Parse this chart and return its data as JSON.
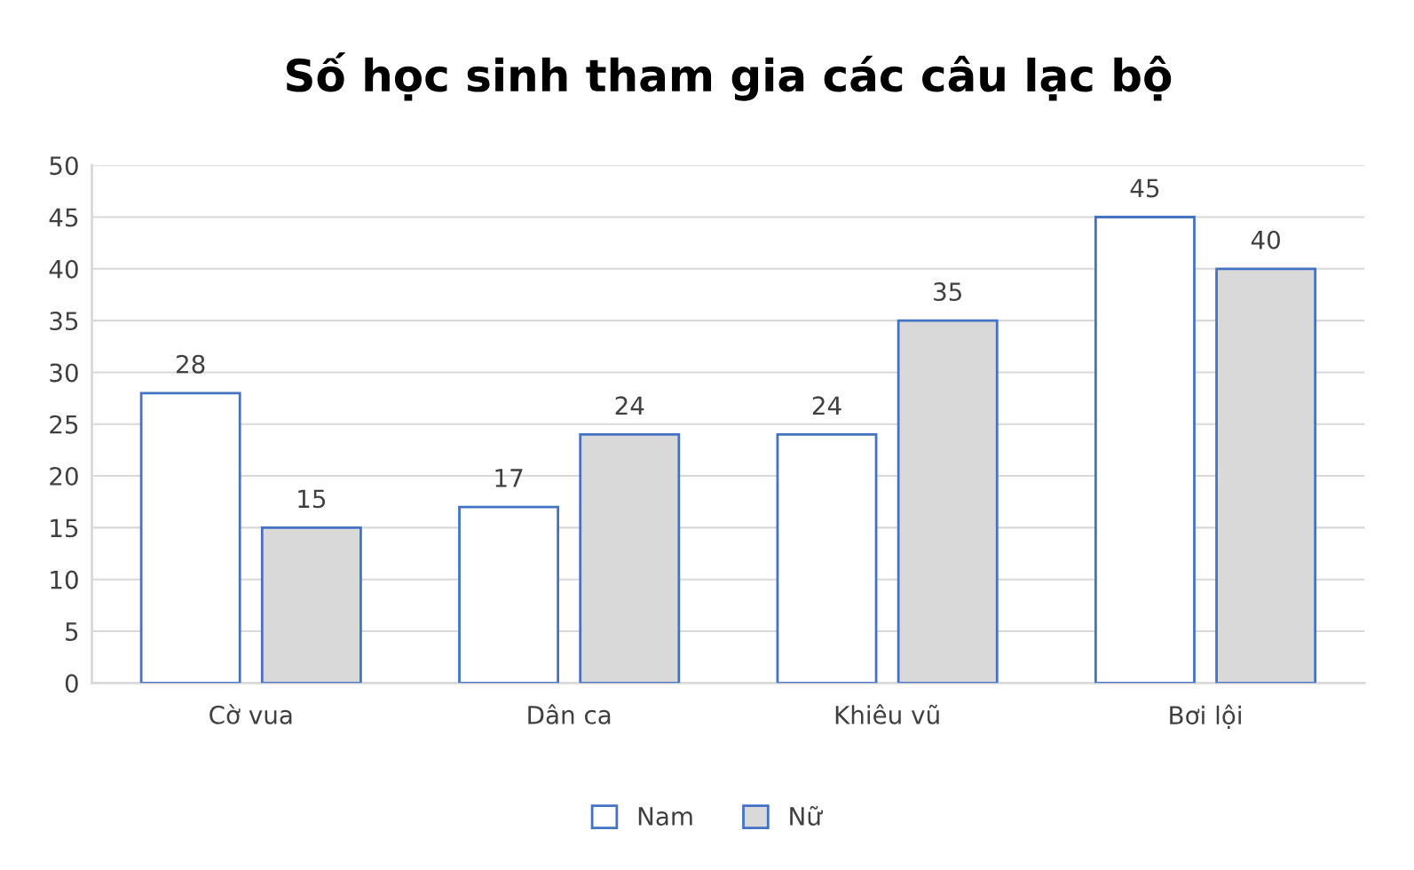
{
  "chart_data": {
    "type": "bar",
    "title": "Số học sinh tham gia các câu lạc bộ",
    "categories": [
      "Cờ vua",
      "Dân ca",
      "Khiêu vũ",
      "Bơi lội"
    ],
    "series": [
      {
        "name": "Nam",
        "color": "#ffffff",
        "values": [
          28,
          17,
          24,
          45
        ]
      },
      {
        "name": "Nữ",
        "color": "#d9d9d9",
        "values": [
          15,
          24,
          35,
          40
        ]
      }
    ],
    "ylim": [
      0,
      50
    ],
    "yticks": [
      0,
      5,
      10,
      15,
      20,
      25,
      30,
      35,
      40,
      45,
      50
    ],
    "grid": "y",
    "legend": "bottom",
    "data_labels": true
  }
}
